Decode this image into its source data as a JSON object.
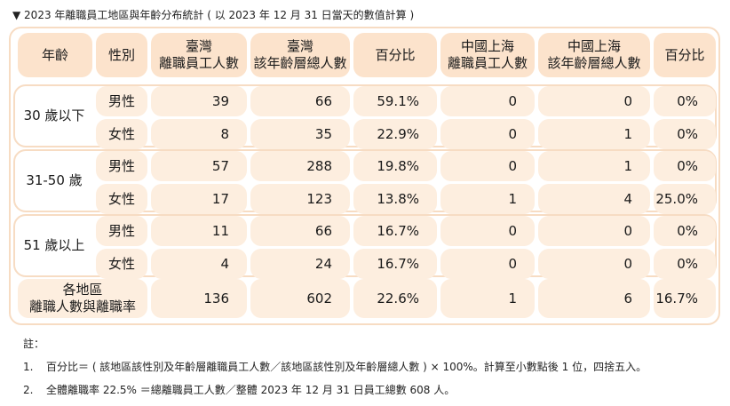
{
  "title": "▼ 2023 年離職員工地區與年齡分布統計 ( 以 2023 年 12 月 31 日當天的數值計算 )",
  "headers": [
    "年齡",
    "性別",
    "臺灣\n離職員工人數",
    "臺灣\n該年齡層總人數",
    "百分比",
    "中國上海\n離職員工人數",
    "中國上海\n該年齡層總人數",
    "百分比"
  ],
  "groups": [
    {
      "label": "30 歲以下",
      "rows": [
        {
          "sex": "男性",
          "vals": [
            "39",
            "66",
            "59.1%",
            "0",
            "0",
            "0%"
          ]
        },
        {
          "sex": "女性",
          "vals": [
            "8",
            "35",
            "22.9%",
            "0",
            "1",
            "0%"
          ]
        }
      ]
    },
    {
      "label": "31-50 歲",
      "rows": [
        {
          "sex": "男性",
          "vals": [
            "57",
            "288",
            "19.8%",
            "0",
            "1",
            "0%"
          ]
        },
        {
          "sex": "女性",
          "vals": [
            "17",
            "123",
            "13.8%",
            "1",
            "4",
            "25.0%"
          ]
        }
      ]
    },
    {
      "label": "51 歲以上",
      "rows": [
        {
          "sex": "男性",
          "vals": [
            "11",
            "66",
            "16.7%",
            "0",
            "0",
            "0%"
          ]
        },
        {
          "sex": "女性",
          "vals": [
            "4",
            "24",
            "16.7%",
            "0",
            "0",
            "0%"
          ]
        }
      ]
    }
  ],
  "total": {
    "label": "各地區\n離職人數與離職率",
    "vals": [
      "136",
      "602",
      "22.6%",
      "1",
      "6",
      "16.7%"
    ]
  },
  "notes": {
    "heading": "註：",
    "items": [
      {
        "num": "1.",
        "text": "百分比＝ ( 該地區該性別及年齡層離職員工人數／該地區該性別及年齡層總人數 ) × 100%。計算至小數點後 1 位，四捨五入。"
      },
      {
        "num": "2.",
        "text": "全體離職率 22.5% ＝總離職員工人數／整體 2023 年 12 月 31 日員工總數 608 人。"
      }
    ]
  },
  "colors": {
    "border": "#f7dcc3",
    "header_fill": "#fce3cc",
    "cell_fill": "#fdeedf"
  }
}
